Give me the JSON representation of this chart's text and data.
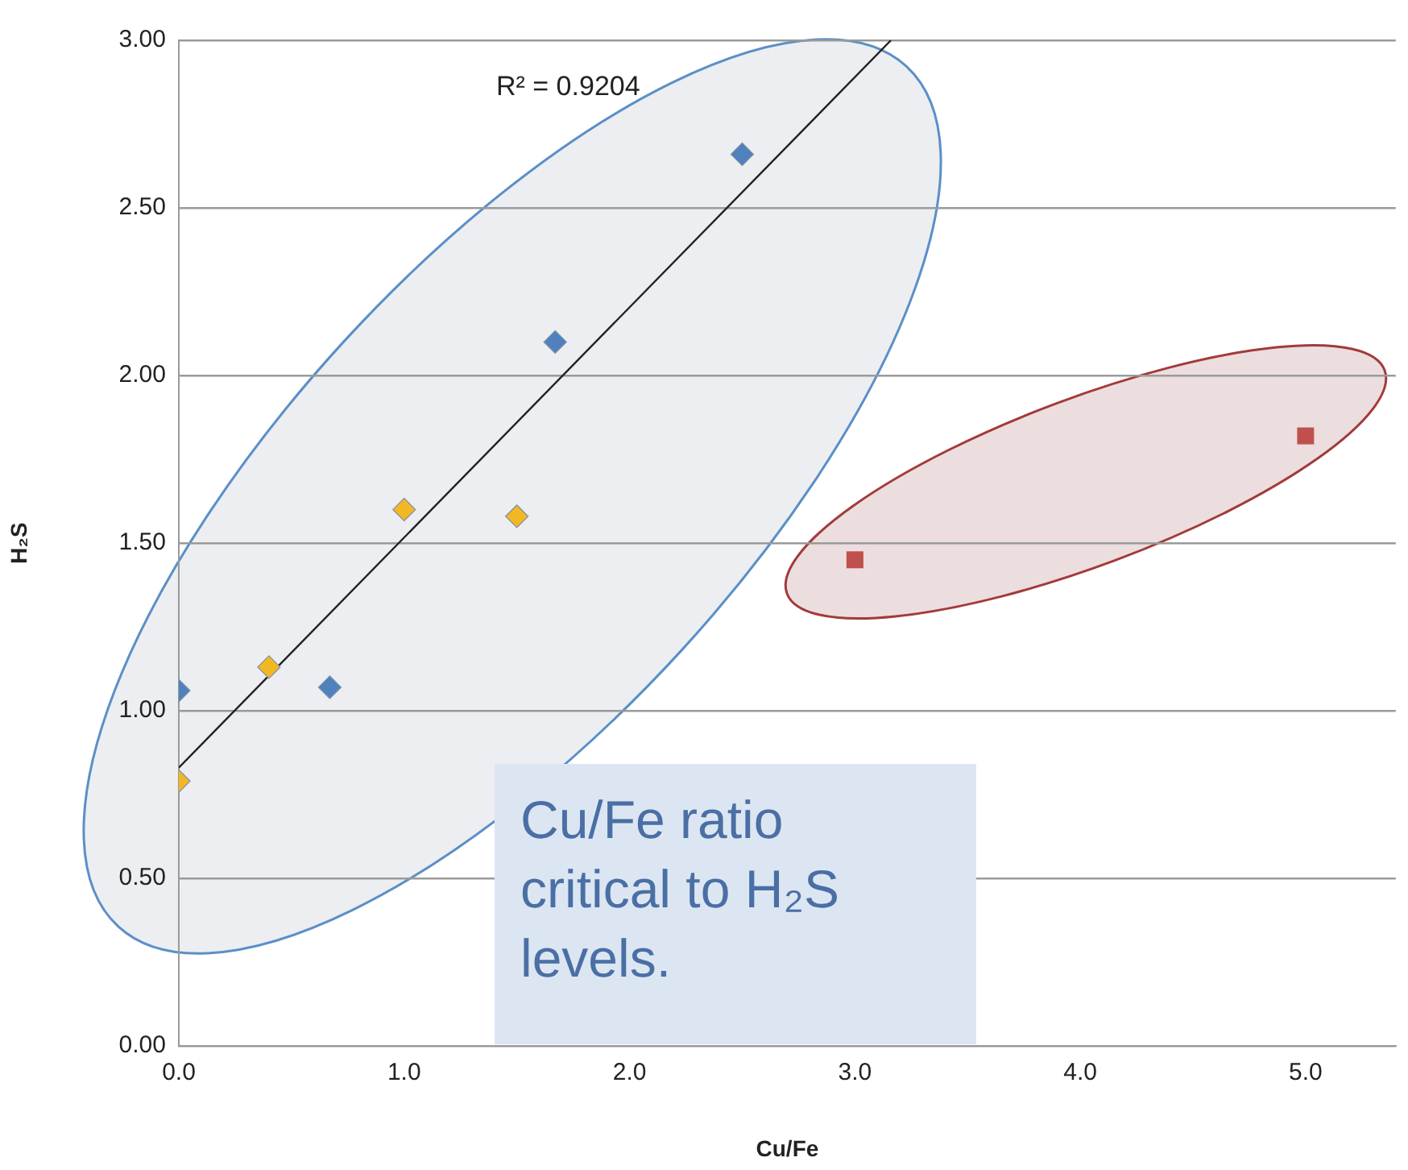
{
  "chart_data": {
    "type": "scatter",
    "xlabel": "Cu/Fe",
    "ylabel": "H₂S",
    "xlim": [
      0,
      5.4
    ],
    "ylim": [
      0,
      3
    ],
    "xticks": [
      {
        "value": 0,
        "label": "0.0"
      },
      {
        "value": 1,
        "label": "1.0"
      },
      {
        "value": 2,
        "label": "2.0"
      },
      {
        "value": 3,
        "label": "3.0"
      },
      {
        "value": 4,
        "label": "4.0"
      },
      {
        "value": 5,
        "label": "5.0"
      }
    ],
    "yticks": [
      {
        "value": 0,
        "label": "0.00"
      },
      {
        "value": 0.5,
        "label": "0.50"
      },
      {
        "value": 1,
        "label": "1.00"
      },
      {
        "value": 1.5,
        "label": "1.50"
      },
      {
        "value": 2,
        "label": "2.00"
      },
      {
        "value": 2.5,
        "label": "2.50"
      },
      {
        "value": 3,
        "label": "3.00"
      }
    ],
    "grid": "y",
    "legend": false,
    "series": [
      {
        "marker": "diamond",
        "color": "#4f81bd",
        "x": [
          0,
          0.67,
          1.67,
          2.5
        ],
        "values": [
          1.06,
          1.07,
          2.1,
          2.66
        ]
      },
      {
        "marker": "diamond",
        "color": "#f2b824",
        "x": [
          0,
          0.4,
          1.0,
          1.5
        ],
        "values": [
          0.79,
          1.13,
          1.6,
          1.58
        ]
      },
      {
        "marker": "square",
        "color": "#c0504d",
        "x": [
          3,
          5
        ],
        "values": [
          1.45,
          1.82
        ]
      },
      {
        "type": "line",
        "marker": "none",
        "color": "#222222",
        "x": [
          0,
          3.16
        ],
        "values": [
          0.83,
          3.0
        ]
      }
    ],
    "annotations": [
      "R² = 0.9204",
      "Cu/Fe ratio critical to H₂S levels."
    ]
  }
}
